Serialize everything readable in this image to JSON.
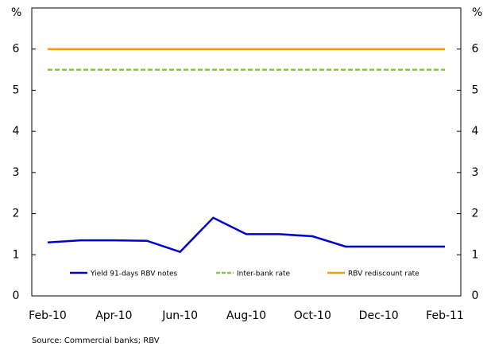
{
  "chart_data": {
    "type": "line",
    "categories": [
      "Feb-10",
      null,
      "Apr-10",
      null,
      "Jun-10",
      null,
      "Aug-10",
      null,
      "Oct-10",
      null,
      "Dec-10",
      null,
      "Feb-11"
    ],
    "series": [
      {
        "name": "Yield 91-days RBV notes",
        "color": "#0000cc",
        "dash": false,
        "values": [
          1.3,
          1.35,
          1.35,
          1.34,
          1.07,
          1.9,
          1.5,
          1.5,
          1.45,
          1.2,
          1.2,
          1.2,
          1.2
        ]
      },
      {
        "name": "Inter-bank rate",
        "color": "#8cc43c",
        "dash": true,
        "values": [
          5.5,
          5.5,
          5.5,
          5.5,
          5.5,
          5.5,
          5.5,
          5.5,
          5.5,
          5.5,
          5.5,
          5.5,
          5.5
        ]
      },
      {
        "name": "RBV rediscount rate",
        "color": "#ff9900",
        "dash": false,
        "values": [
          6,
          6,
          6,
          6,
          6,
          6,
          6,
          6,
          6,
          6,
          6,
          6,
          6
        ]
      }
    ],
    "y_label": "%",
    "y2_label": "%",
    "ylim": [
      0,
      7
    ],
    "yticks": [
      0,
      1,
      2,
      3,
      4,
      5,
      6
    ],
    "y2lim": [
      0,
      7
    ],
    "y2ticks": [
      0,
      1,
      2,
      3,
      4,
      5,
      6
    ],
    "grid": false,
    "source": "Source: Commercial banks; RBV"
  }
}
